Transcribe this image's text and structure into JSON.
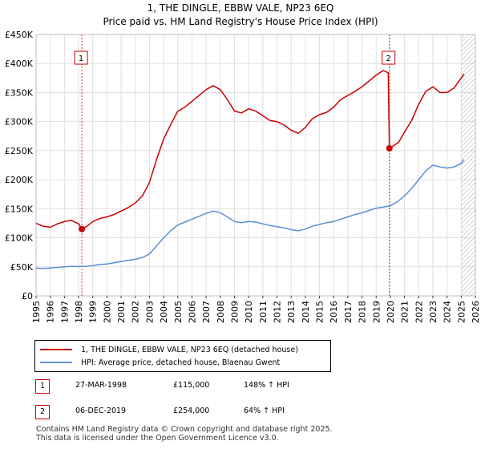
{
  "chart_data": {
    "type": "line",
    "title": "1, THE DINGLE, EBBW VALE, NP23 6EQ",
    "subtitle": "Price paid vs. HM Land Registry's House Price Index (HPI)",
    "xlim": [
      1995,
      2026
    ],
    "ylim": [
      0,
      450000
    ],
    "x_ticks": [
      "1995",
      "1996",
      "1997",
      "1998",
      "1999",
      "2000",
      "2001",
      "2002",
      "2003",
      "2004",
      "2005",
      "2006",
      "2007",
      "2008",
      "2009",
      "2010",
      "2011",
      "2012",
      "2013",
      "2014",
      "2015",
      "2016",
      "2017",
      "2018",
      "2019",
      "2020",
      "2021",
      "2022",
      "2023",
      "2024",
      "2025",
      "2026"
    ],
    "y_ticks": [
      {
        "value": 0,
        "label": "£0"
      },
      {
        "value": 50000,
        "label": "£50K"
      },
      {
        "value": 100000,
        "label": "£100K"
      },
      {
        "value": 150000,
        "label": "£150K"
      },
      {
        "value": 200000,
        "label": "£200K"
      },
      {
        "value": 250000,
        "label": "£250K"
      },
      {
        "value": 300000,
        "label": "£300K"
      },
      {
        "value": 350000,
        "label": "£350K"
      },
      {
        "value": 400000,
        "label": "£400K"
      },
      {
        "value": 450000,
        "label": "£450K"
      }
    ],
    "series": [
      {
        "name": "1, THE DINGLE, EBBW VALE, NP23 6EQ (detached house)",
        "color": "#cc0000",
        "points": [
          [
            1995.0,
            125000
          ],
          [
            1995.5,
            120000
          ],
          [
            1996.0,
            118000
          ],
          [
            1996.5,
            124000
          ],
          [
            1997.0,
            128000
          ],
          [
            1997.5,
            130000
          ],
          [
            1998.0,
            124000
          ],
          [
            1998.23,
            115000
          ],
          [
            1998.6,
            120000
          ],
          [
            1999.0,
            128000
          ],
          [
            1999.5,
            133000
          ],
          [
            2000.0,
            136000
          ],
          [
            2000.5,
            140000
          ],
          [
            2001.0,
            146000
          ],
          [
            2001.5,
            152000
          ],
          [
            2002.0,
            160000
          ],
          [
            2002.5,
            172000
          ],
          [
            2003.0,
            195000
          ],
          [
            2003.5,
            235000
          ],
          [
            2004.0,
            270000
          ],
          [
            2004.5,
            295000
          ],
          [
            2005.0,
            318000
          ],
          [
            2005.5,
            325000
          ],
          [
            2006.0,
            335000
          ],
          [
            2006.5,
            345000
          ],
          [
            2007.0,
            355000
          ],
          [
            2007.5,
            362000
          ],
          [
            2008.0,
            355000
          ],
          [
            2008.5,
            338000
          ],
          [
            2009.0,
            318000
          ],
          [
            2009.5,
            315000
          ],
          [
            2010.0,
            322000
          ],
          [
            2010.5,
            318000
          ],
          [
            2011.0,
            310000
          ],
          [
            2011.5,
            302000
          ],
          [
            2012.0,
            300000
          ],
          [
            2012.5,
            294000
          ],
          [
            2013.0,
            285000
          ],
          [
            2013.5,
            280000
          ],
          [
            2014.0,
            290000
          ],
          [
            2014.5,
            305000
          ],
          [
            2015.0,
            312000
          ],
          [
            2015.5,
            316000
          ],
          [
            2016.0,
            325000
          ],
          [
            2016.5,
            338000
          ],
          [
            2017.0,
            345000
          ],
          [
            2017.5,
            352000
          ],
          [
            2018.0,
            360000
          ],
          [
            2018.5,
            370000
          ],
          [
            2019.0,
            380000
          ],
          [
            2019.5,
            388000
          ],
          [
            2019.85,
            384000
          ],
          [
            2019.93,
            254000
          ],
          [
            2020.2,
            258000
          ],
          [
            2020.6,
            265000
          ],
          [
            2021.0,
            282000
          ],
          [
            2021.5,
            302000
          ],
          [
            2022.0,
            330000
          ],
          [
            2022.5,
            352000
          ],
          [
            2023.0,
            360000
          ],
          [
            2023.5,
            350000
          ],
          [
            2024.0,
            350000
          ],
          [
            2024.5,
            358000
          ],
          [
            2025.0,
            375000
          ],
          [
            2025.2,
            382000
          ]
        ]
      },
      {
        "name": "HPI: Average price, detached house, Blaenau Gwent",
        "color": "#5b8fd6",
        "points": [
          [
            1995.0,
            48000
          ],
          [
            1995.5,
            47000
          ],
          [
            1996.0,
            48000
          ],
          [
            1996.5,
            49000
          ],
          [
            1997.0,
            50000
          ],
          [
            1997.5,
            51000
          ],
          [
            1998.0,
            50500
          ],
          [
            1998.5,
            51000
          ],
          [
            1999.0,
            52000
          ],
          [
            1999.5,
            54000
          ],
          [
            2000.0,
            55000
          ],
          [
            2000.5,
            57000
          ],
          [
            2001.0,
            59000
          ],
          [
            2001.5,
            61000
          ],
          [
            2002.0,
            63000
          ],
          [
            2002.5,
            66000
          ],
          [
            2003.0,
            72000
          ],
          [
            2003.5,
            86000
          ],
          [
            2004.0,
            100000
          ],
          [
            2004.5,
            112000
          ],
          [
            2005.0,
            122000
          ],
          [
            2005.5,
            127000
          ],
          [
            2006.0,
            132000
          ],
          [
            2006.5,
            137000
          ],
          [
            2007.0,
            142000
          ],
          [
            2007.5,
            146000
          ],
          [
            2008.0,
            143000
          ],
          [
            2008.5,
            136000
          ],
          [
            2009.0,
            128000
          ],
          [
            2009.5,
            126000
          ],
          [
            2010.0,
            128000
          ],
          [
            2010.5,
            127000
          ],
          [
            2011.0,
            124000
          ],
          [
            2011.5,
            121000
          ],
          [
            2012.0,
            119000
          ],
          [
            2012.5,
            117000
          ],
          [
            2013.0,
            114000
          ],
          [
            2013.5,
            112000
          ],
          [
            2014.0,
            115000
          ],
          [
            2014.5,
            120000
          ],
          [
            2015.0,
            123000
          ],
          [
            2015.5,
            126000
          ],
          [
            2016.0,
            128000
          ],
          [
            2016.5,
            132000
          ],
          [
            2017.0,
            136000
          ],
          [
            2017.5,
            140000
          ],
          [
            2018.0,
            143000
          ],
          [
            2018.5,
            147000
          ],
          [
            2019.0,
            151000
          ],
          [
            2019.5,
            153000
          ],
          [
            2020.0,
            155000
          ],
          [
            2020.5,
            162000
          ],
          [
            2021.0,
            172000
          ],
          [
            2021.5,
            185000
          ],
          [
            2022.0,
            200000
          ],
          [
            2022.5,
            215000
          ],
          [
            2023.0,
            225000
          ],
          [
            2023.5,
            222000
          ],
          [
            2024.0,
            220000
          ],
          [
            2024.5,
            222000
          ],
          [
            2025.0,
            228000
          ],
          [
            2025.2,
            235000
          ]
        ]
      }
    ],
    "sales": [
      {
        "id": "1",
        "x": 1998.23,
        "price": 115000
      },
      {
        "id": "2",
        "x": 2019.93,
        "price": 254000
      }
    ],
    "forecast_start": 2025.0
  },
  "legend": {
    "property": "1, THE DINGLE, EBBW VALE, NP23 6EQ (detached house)",
    "hpi": "HPI: Average price, detached house, Blaenau Gwent"
  },
  "annotations": [
    {
      "id": "1",
      "date": "27-MAR-1998",
      "price": "£115,000",
      "hpi": "148% ↑ HPI"
    },
    {
      "id": "2",
      "date": "06-DEC-2019",
      "price": "£254,000",
      "hpi": "64% ↑ HPI"
    }
  ],
  "footer": {
    "line1": "Contains HM Land Registry data © Crown copyright and database right 2025.",
    "line2": "This data is licensed under the Open Government Licence v3.0."
  },
  "colors": {
    "property": "#cc0000",
    "hpi": "#5b8fd6",
    "sale_line": "#cc0000",
    "forecast_hatch": "#999999"
  }
}
